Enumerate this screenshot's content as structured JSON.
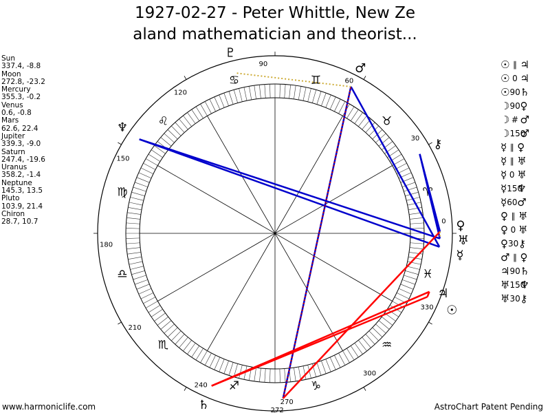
{
  "title": {
    "line1": "1927-02-27 - Peter Whittle, New Ze",
    "line2": "aland mathematician and theorist..."
  },
  "positions": [
    {
      "name": "Sun",
      "value": "337.4, -8.8"
    },
    {
      "name": "Moon",
      "value": "272.8, -23.2"
    },
    {
      "name": "Mercury",
      "value": "355.3, -0.2"
    },
    {
      "name": "Venus",
      "value": "0.6, -0.8"
    },
    {
      "name": "Mars",
      "value": "62.6, 22.4"
    },
    {
      "name": "Jupiter",
      "value": "339.3, -9.0"
    },
    {
      "name": "Saturn",
      "value": "247.4, -19.6"
    },
    {
      "name": "Uranus",
      "value": "358.2, -1.4"
    },
    {
      "name": "Neptune",
      "value": "145.3, 13.5"
    },
    {
      "name": "Pluto",
      "value": "103.9, 21.4"
    },
    {
      "name": "Chiron",
      "value": "28.7, 10.7"
    }
  ],
  "aspects": [
    {
      "p1": "☉",
      "aspect": "∥",
      "p2": "♃"
    },
    {
      "p1": "☉",
      "aspect": "0",
      "p2": "♃"
    },
    {
      "p1": "☉",
      "aspect": "90",
      "p2": "♄"
    },
    {
      "p1": "☽",
      "aspect": "90",
      "p2": "♀"
    },
    {
      "p1": "☽",
      "aspect": "#",
      "p2": "♂"
    },
    {
      "p1": "☽",
      "aspect": "150",
      "p2": "♂"
    },
    {
      "p1": "☿",
      "aspect": "∥",
      "p2": "♀"
    },
    {
      "p1": "☿",
      "aspect": "∥",
      "p2": "♅"
    },
    {
      "p1": "☿",
      "aspect": "0",
      "p2": "♅"
    },
    {
      "p1": "☿",
      "aspect": "150",
      "p2": "♆"
    },
    {
      "p1": "☿",
      "aspect": "60",
      "p2": "♂"
    },
    {
      "p1": "♀",
      "aspect": "∥",
      "p2": "♅"
    },
    {
      "p1": "♀",
      "aspect": "0",
      "p2": "♅"
    },
    {
      "p1": "♀",
      "aspect": "30",
      "p2": "⚷"
    },
    {
      "p1": "♂",
      "aspect": "∥",
      "p2": "♀"
    },
    {
      "p1": "♃",
      "aspect": "90",
      "p2": "♄"
    },
    {
      "p1": "♅",
      "aspect": "150",
      "p2": "♆"
    },
    {
      "p1": "♅",
      "aspect": "30",
      "p2": "⚷"
    }
  ],
  "chart_data": {
    "type": "scatter",
    "subtype": "astrological-wheel",
    "degree_ticks": [
      "90",
      "60",
      "30",
      "0",
      "330",
      "300",
      "270",
      "240",
      "210",
      "180",
      "150",
      "120"
    ],
    "moon_degree_label": "272",
    "planets": [
      {
        "name": "Sun",
        "glyph": "☉",
        "longitude": 337.4,
        "declination": -8.8
      },
      {
        "name": "Moon",
        "glyph": "☽",
        "longitude": 272.8,
        "declination": -23.2
      },
      {
        "name": "Mercury",
        "glyph": "☿",
        "longitude": 355.3,
        "declination": -0.2
      },
      {
        "name": "Venus",
        "glyph": "♀",
        "longitude": 0.6,
        "declination": -0.8
      },
      {
        "name": "Mars",
        "glyph": "♂",
        "longitude": 62.6,
        "declination": 22.4
      },
      {
        "name": "Jupiter",
        "glyph": "♃",
        "longitude": 339.3,
        "declination": -9.0
      },
      {
        "name": "Saturn",
        "glyph": "♄",
        "longitude": 247.4,
        "declination": -19.6
      },
      {
        "name": "Uranus",
        "glyph": "♅",
        "longitude": 358.2,
        "declination": -1.4
      },
      {
        "name": "Neptune",
        "glyph": "♆",
        "longitude": 145.3,
        "declination": 13.5
      },
      {
        "name": "Pluto",
        "glyph": "♇",
        "longitude": 103.9,
        "declination": 21.4
      },
      {
        "name": "Chiron",
        "glyph": "⚷",
        "longitude": 28.7,
        "declination": 10.7
      }
    ],
    "signs": [
      {
        "glyph": "♈",
        "start": 0
      },
      {
        "glyph": "♉",
        "start": 30
      },
      {
        "glyph": "♊",
        "start": 60
      },
      {
        "glyph": "♋",
        "start": 90
      },
      {
        "glyph": "♌",
        "start": 120
      },
      {
        "glyph": "♍",
        "start": 150
      },
      {
        "glyph": "♎",
        "start": 180
      },
      {
        "glyph": "♏",
        "start": 210
      },
      {
        "glyph": "♐",
        "start": 240
      },
      {
        "glyph": "♑",
        "start": 270
      },
      {
        "glyph": "♒",
        "start": 300
      },
      {
        "glyph": "♓",
        "start": 330
      }
    ],
    "aspect_lines": [
      {
        "from": 355.3,
        "to": 145.3,
        "color": "#0000cc",
        "style": "solid"
      },
      {
        "from": 358.2,
        "to": 145.3,
        "color": "#0000cc",
        "style": "solid"
      },
      {
        "from": 355.3,
        "to": 62.6,
        "color": "#0000cc",
        "style": "solid"
      },
      {
        "from": 0.6,
        "to": 28.7,
        "color": "#0000cc",
        "style": "solid"
      },
      {
        "from": 358.2,
        "to": 28.7,
        "color": "#0000cc",
        "style": "solid"
      },
      {
        "from": 272.8,
        "to": 62.6,
        "color": "#0000cc",
        "style": "solid"
      },
      {
        "from": 272.8,
        "to": 62.6,
        "color": "#cc0000",
        "style": "dotted"
      },
      {
        "from": 272.8,
        "to": 0.6,
        "color": "#ff0000",
        "style": "solid"
      },
      {
        "from": 337.4,
        "to": 247.4,
        "color": "#ff0000",
        "style": "solid"
      },
      {
        "from": 339.3,
        "to": 247.4,
        "color": "#ff0000",
        "style": "solid"
      },
      {
        "from": 337.4,
        "to": 339.3,
        "color": "#ff0000",
        "style": "solid"
      },
      {
        "from": 62.6,
        "to": 103.9,
        "color": "#ccaa33",
        "style": "dotted"
      },
      {
        "from": 0.6,
        "to": 358.2,
        "color": "#ccaa33",
        "style": "dotted"
      }
    ]
  },
  "footer": {
    "left": "www.harmoniclife.com",
    "right": "AstroChart Patent Pending"
  }
}
